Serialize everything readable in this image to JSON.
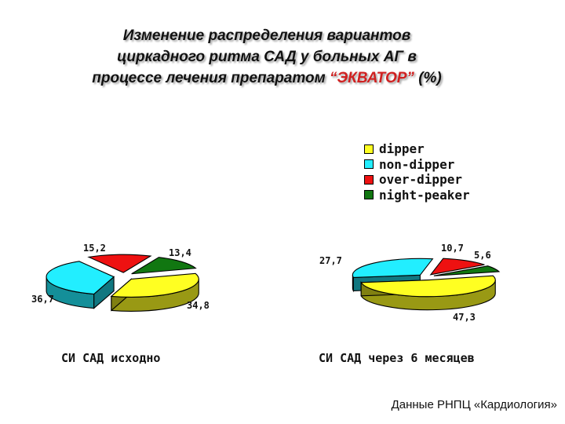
{
  "title": {
    "line1": "Изменение распределения вариантов",
    "line2": "циркадного ритма САД у больных АГ      в",
    "line3_pre": "процессе лечения препаратом ",
    "drug": "“ЭКВАТОР”",
    "line3_post": " (%)"
  },
  "colors": {
    "dipper": "#ffff22",
    "non-dipper": "#22eeff",
    "over-dipper": "#ee1111",
    "night-peaker": "#117711"
  },
  "chart_data": [
    {
      "type": "pie",
      "caption": "СИ САД исходно",
      "labels": [
        "dipper",
        "non-dipper",
        "over-dipper",
        "night-peaker"
      ],
      "values": [
        34.8,
        36.7,
        15.2,
        13.4
      ],
      "value_labels": [
        "34,8",
        "36,7",
        "15,2",
        "13,4"
      ],
      "legend": "top-right"
    },
    {
      "type": "pie",
      "caption": "СИ САД через 6 месяцев",
      "labels": [
        "dipper",
        "non-dipper",
        "over-dipper",
        "night-peaker"
      ],
      "values": [
        47.3,
        27.7,
        10.7,
        5.6
      ],
      "value_labels": [
        "47,3",
        "27,7",
        "10,7",
        "5,6"
      ],
      "legend": "top-right"
    }
  ],
  "source": "Данные РНПЦ «Кардиология»"
}
